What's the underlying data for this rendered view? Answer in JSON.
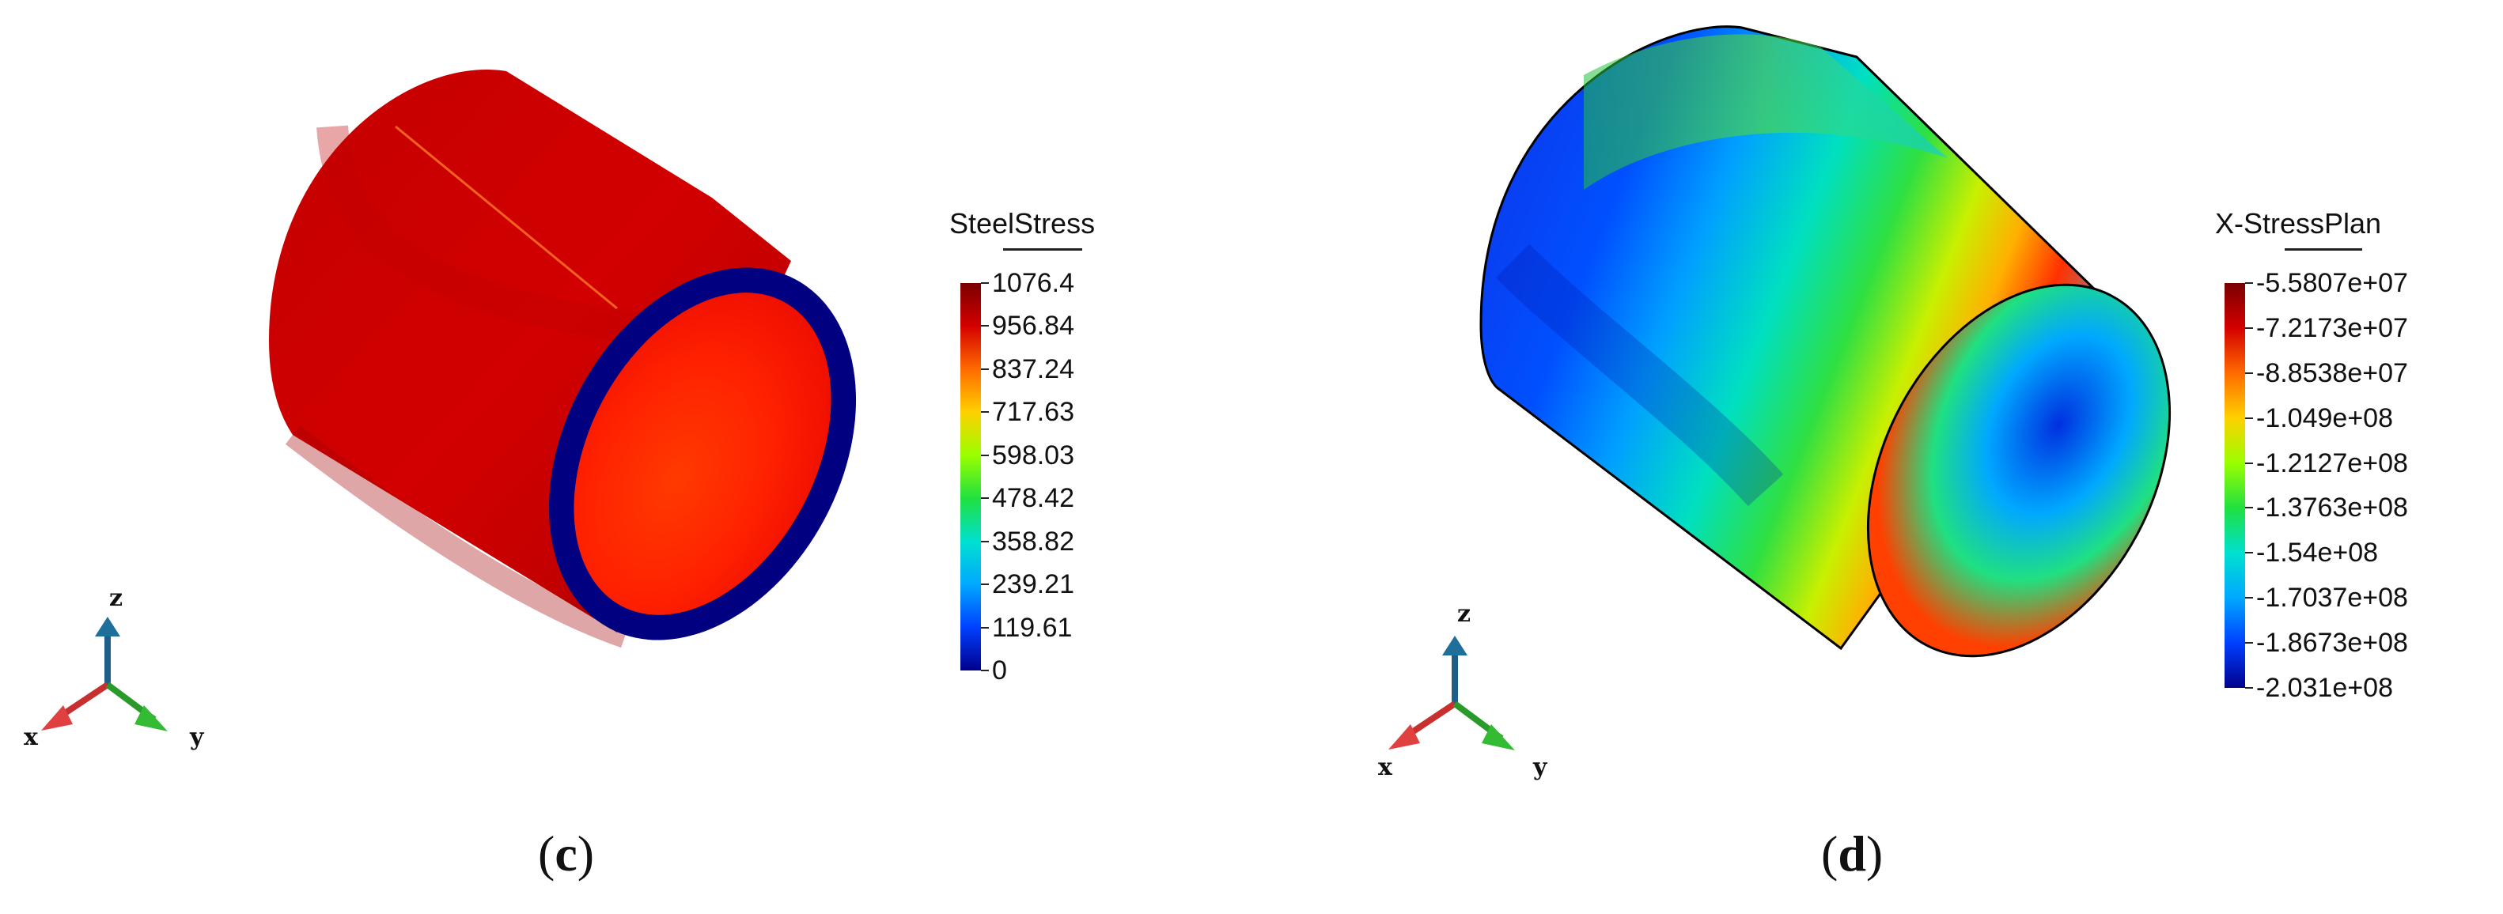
{
  "panels": [
    {
      "id": "c",
      "caption_open": "(",
      "caption_letter": "c",
      "caption_close": ")",
      "legend_title": "SteelStress",
      "legend_ticks": [
        "1076.4",
        "956.84",
        "837.24",
        "717.63",
        "598.03",
        "478.42",
        "358.82",
        "239.21",
        "119.61",
        "0"
      ],
      "colormap": [
        "#7a0000",
        "#d40000",
        "#ff6a00",
        "#ffd000",
        "#9aff00",
        "#20e040",
        "#00e0d0",
        "#00a8ff",
        "#0040ff",
        "#00008c"
      ],
      "axes": {
        "x": "x",
        "y": "y",
        "z": "z"
      }
    },
    {
      "id": "d",
      "caption_open": "(",
      "caption_letter": "d",
      "caption_close": ")",
      "legend_title": "X-StressPlan",
      "legend_ticks": [
        "-5.5807e+07",
        "-7.2173e+07",
        "-8.8538e+07",
        "-1.049e+08",
        "-1.2127e+08",
        "-1.3763e+08",
        "-1.54e+08",
        "-1.7037e+08",
        "-1.8673e+08",
        "-2.031e+08"
      ],
      "colormap": [
        "#7a0000",
        "#d40000",
        "#ff6a00",
        "#ffd000",
        "#9aff00",
        "#20e040",
        "#00e0d0",
        "#00a8ff",
        "#0040ff",
        "#00008c"
      ],
      "axes": {
        "x": "x",
        "y": "y",
        "z": "z"
      }
    }
  ]
}
